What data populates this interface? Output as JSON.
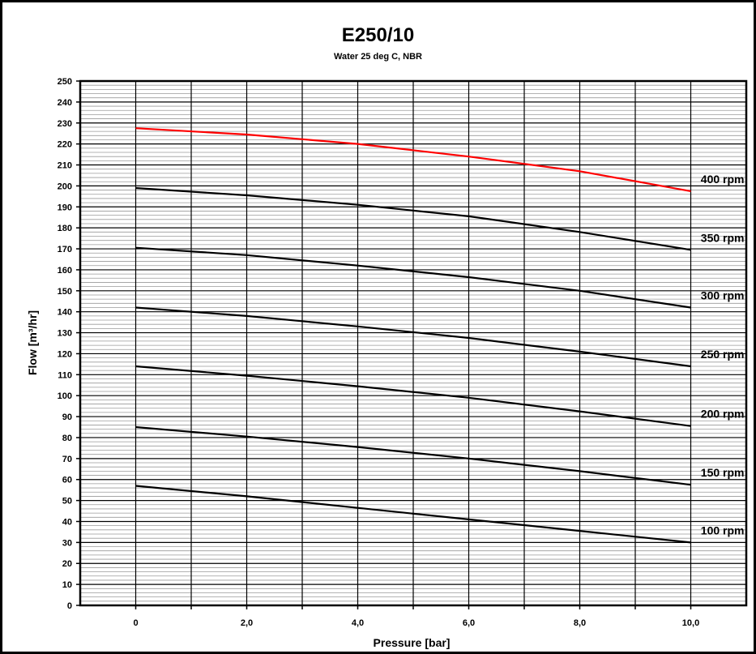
{
  "chart_data": {
    "type": "line",
    "title": "E250/10",
    "subtitle": "Water 25 deg C, NBR",
    "xlabel": "Pressure [bar]",
    "ylabel": "Flow [m³/hr]",
    "xlim": [
      -1,
      11
    ],
    "ylim": [
      0,
      250
    ],
    "x_ticks": [
      0,
      2,
      4,
      6,
      8,
      10
    ],
    "x_tick_labels": [
      "0",
      "2,0",
      "4,0",
      "6,0",
      "8,0",
      "10,0"
    ],
    "y_ticks": [
      0,
      10,
      20,
      30,
      40,
      50,
      60,
      70,
      80,
      90,
      100,
      110,
      120,
      130,
      140,
      150,
      160,
      170,
      180,
      190,
      200,
      210,
      220,
      230,
      240,
      250
    ],
    "y_tick_labels": [
      "0",
      "10",
      "20",
      "30",
      "40",
      "50",
      "60",
      "70",
      "80",
      "90",
      "100",
      "110",
      "120",
      "130",
      "140",
      "150",
      "160",
      "170",
      "180",
      "190",
      "200",
      "210",
      "220",
      "230",
      "240",
      "250"
    ],
    "grid": true,
    "series": [
      {
        "name": "400 rpm",
        "color": "#ff0000",
        "x": [
          0,
          2,
          4,
          6,
          8,
          10
        ],
        "y": [
          227.5,
          224.5,
          220,
          214,
          207,
          197.5
        ]
      },
      {
        "name": "350 rpm",
        "color": "#000000",
        "x": [
          0,
          2,
          4,
          6,
          8,
          10
        ],
        "y": [
          199,
          195.5,
          191,
          185.5,
          178,
          169.5
        ]
      },
      {
        "name": "300 rpm",
        "color": "#000000",
        "x": [
          0,
          2,
          4,
          6,
          8,
          10
        ],
        "y": [
          170.5,
          167,
          162,
          156.5,
          150,
          142
        ]
      },
      {
        "name": "250 rpm",
        "color": "#000000",
        "x": [
          0,
          2,
          4,
          6,
          8,
          10
        ],
        "y": [
          142,
          138,
          133,
          127.5,
          121,
          114
        ]
      },
      {
        "name": "200 rpm",
        "color": "#000000",
        "x": [
          0,
          2,
          4,
          6,
          8,
          10
        ],
        "y": [
          114,
          109.5,
          104.5,
          99,
          92.5,
          85.5
        ]
      },
      {
        "name": "150 rpm",
        "color": "#000000",
        "x": [
          0,
          2,
          4,
          6,
          8,
          10
        ],
        "y": [
          85,
          80.5,
          75.5,
          70,
          64,
          57.5
        ]
      },
      {
        "name": "100 rpm",
        "color": "#000000",
        "x": [
          0,
          2,
          4,
          6,
          8,
          10
        ],
        "y": [
          57,
          52,
          46.5,
          41,
          35.5,
          30
        ]
      }
    ]
  }
}
